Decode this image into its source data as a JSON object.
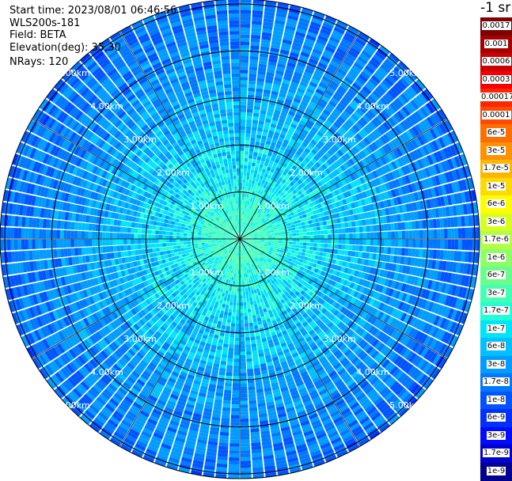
{
  "info": {
    "start_time": "Start time: 2023/08/01 06:46:56",
    "device": "WLS200s-181",
    "field": "Field: BETA",
    "elevation": "Elevation(deg): 35.30",
    "nrays": "NRays: 120"
  },
  "colorbar": {
    "unit_label": "-1 sr",
    "labels": [
      "0.0017",
      "0.001",
      "0.0006",
      "0.0003",
      "0.00017",
      "0.0001",
      "6e-5",
      "3e-5",
      "1.7e-5",
      "1e-5",
      "6e-6",
      "3e-6",
      "1.7e-6",
      "1e-6",
      "6e-7",
      "3e-7",
      "1.7e-7",
      "1e-7",
      "6e-8",
      "3e-8",
      "1.7e-8",
      "1e-8",
      "6e-9",
      "3e-9",
      "1.7e-9",
      "1e-9"
    ],
    "colors": [
      "#7f0000",
      "#a50000",
      "#cc0000",
      "#f40000",
      "#ff2600",
      "#ff4a00",
      "#ff6e00",
      "#ff9200",
      "#ffb600",
      "#ffda00",
      "#fefe00",
      "#d6ff21",
      "#b2ff45",
      "#8eff69",
      "#6aff8d",
      "#45ffb2",
      "#21ffd6",
      "#00e4f8",
      "#00c0ff",
      "#009cff",
      "#0078ff",
      "#0054ff",
      "#0030ff",
      "#000cff",
      "#0000d0",
      "#00008f"
    ]
  },
  "chart_data": {
    "type": "heatmap",
    "projection": "polar (PPI scan)",
    "field": "BETA",
    "n_rays": 120,
    "elevation_deg": 35.3,
    "range_rings_km": [
      1,
      2,
      3,
      4,
      5
    ],
    "range_labels": [
      "1.00km",
      "2.00km",
      "3.00km",
      "4.00km",
      "5.00km"
    ],
    "radial_spokes_deg": [
      0,
      30,
      60,
      90,
      120,
      150,
      180,
      210,
      240,
      270,
      300,
      330
    ],
    "max_range_km": 5.1,
    "color_scale": "log",
    "value_range": [
      1e-09,
      0.0017
    ],
    "range_profile": [
      {
        "range_km": 0.0,
        "beta": 3e-07
      },
      {
        "range_km": 0.5,
        "beta": 3e-07
      },
      {
        "range_km": 1.0,
        "beta": 1.7e-07
      },
      {
        "range_km": 1.5,
        "beta": 1.2e-07
      },
      {
        "range_km": 2.0,
        "beta": 9e-08
      },
      {
        "range_km": 2.5,
        "beta": 7e-08
      },
      {
        "range_km": 3.0,
        "beta": 5e-08
      },
      {
        "range_km": 3.5,
        "beta": 3.5e-08
      },
      {
        "range_km": 4.0,
        "beta": 3e-08
      },
      {
        "range_km": 4.5,
        "beta": 2.5e-08
      },
      {
        "range_km": 5.0,
        "beta": 2e-08
      }
    ]
  }
}
